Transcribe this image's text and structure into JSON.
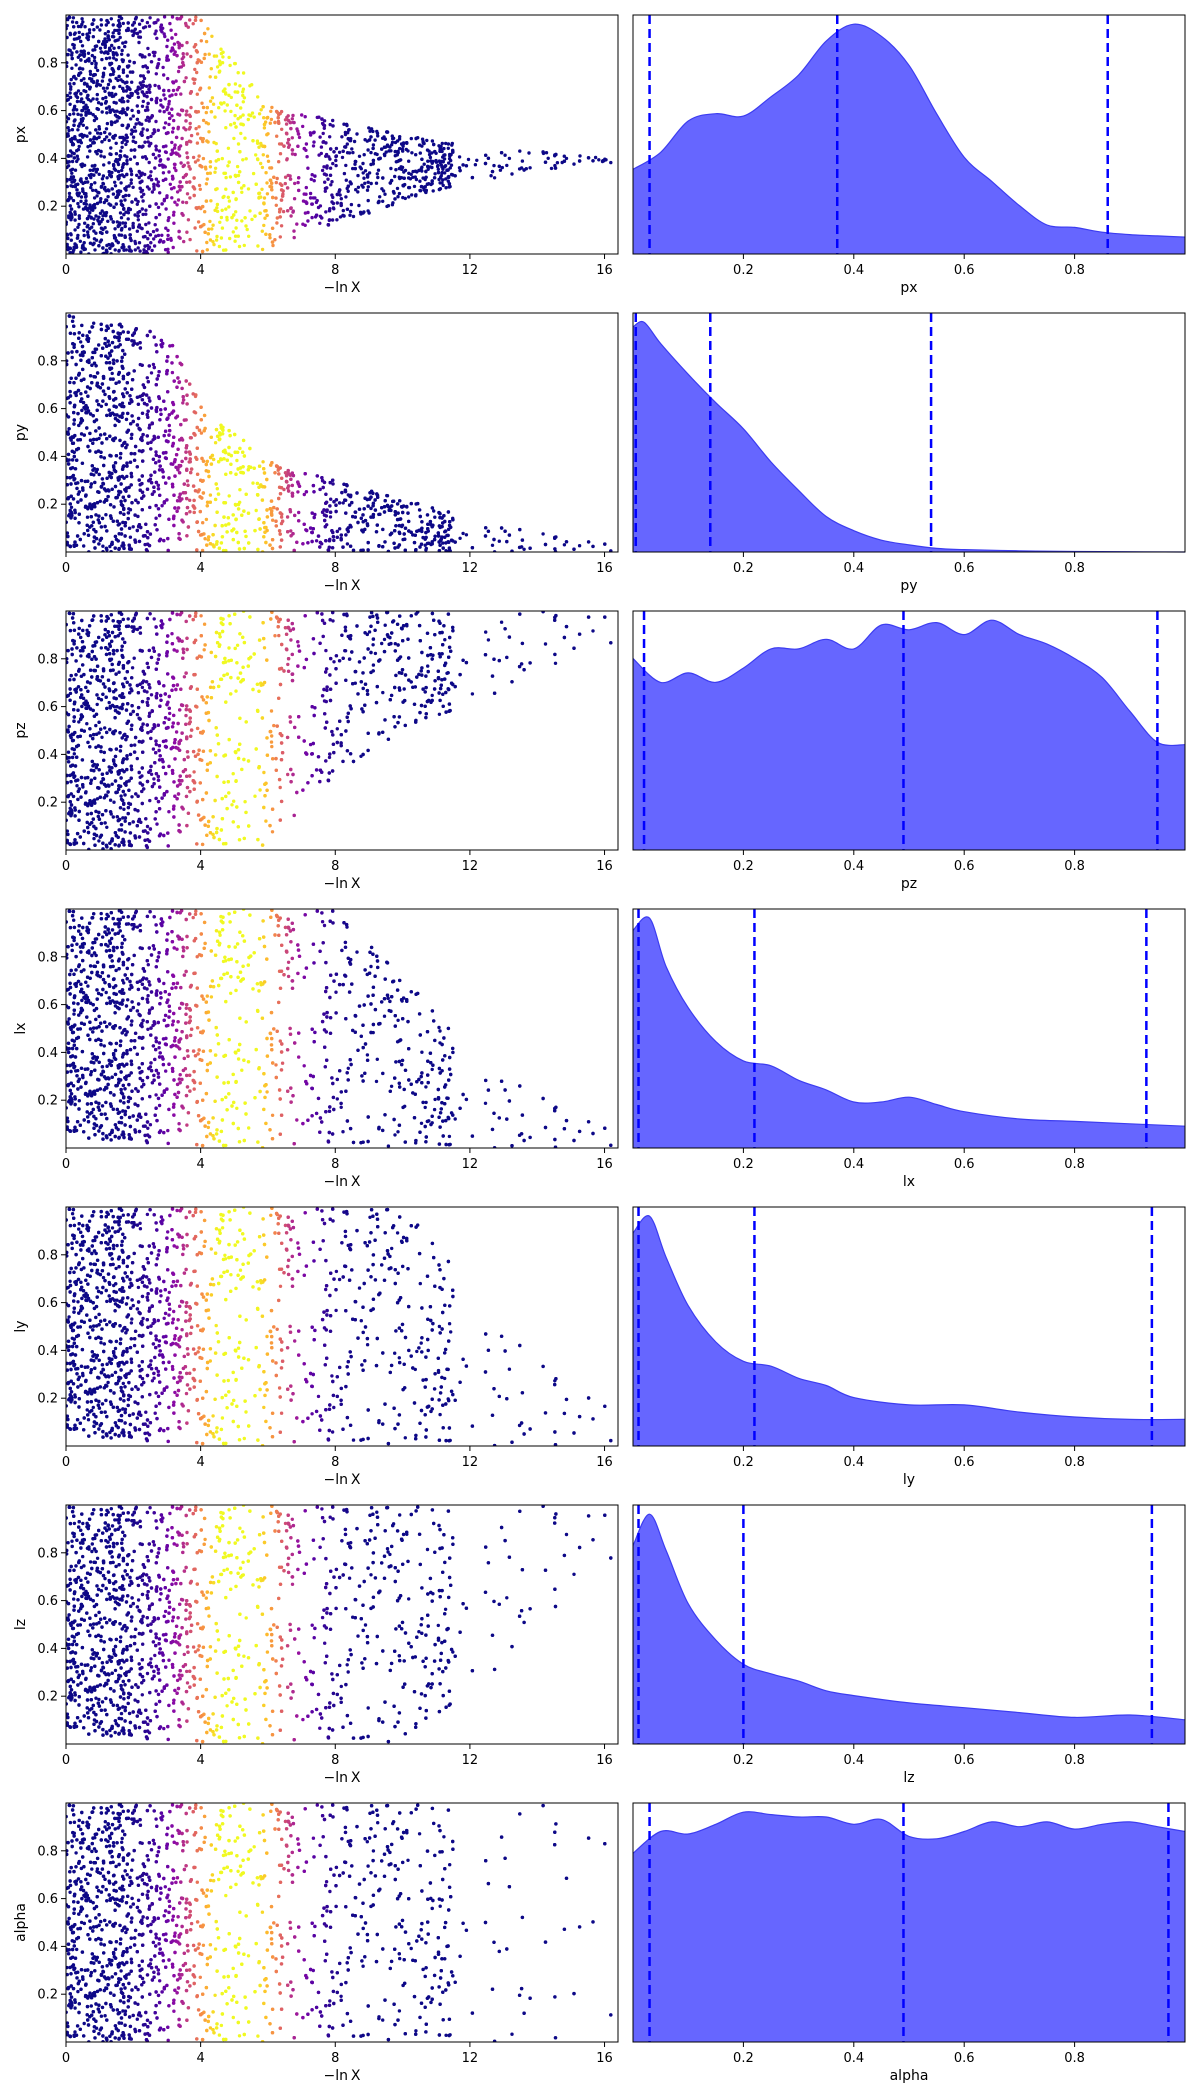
{
  "chart_data": [
    {
      "type": "scatter",
      "xlabel": "−ln X",
      "ylabel": "px",
      "xlim": [
        0,
        16.4
      ],
      "ylim": [
        0,
        1
      ],
      "xticks": [
        0,
        4,
        8,
        12,
        16
      ],
      "xtick_labels": [
        "0",
        "4",
        "8",
        "12",
        "16"
      ],
      "yticks": [
        0.2,
        0.4,
        0.6,
        0.8
      ],
      "ytick_labels": [
        "0.2",
        "0.4",
        "0.6",
        "0.8"
      ],
      "colormap": "plasma",
      "point_color": "#0d0887",
      "envelope": {
        "x": [
          0,
          4,
          6,
          8,
          10,
          12,
          14,
          16
        ],
        "lo": [
          0,
          0,
          0.02,
          0.12,
          0.22,
          0.3,
          0.35,
          0.38
        ],
        "hi": [
          1,
          1,
          0.62,
          0.56,
          0.5,
          0.45,
          0.43,
          0.4
        ]
      }
    },
    {
      "type": "area",
      "xlabel": "px",
      "xlim": [
        0,
        1
      ],
      "xticks": [
        0.2,
        0.4,
        0.6,
        0.8
      ],
      "xtick_labels": [
        "0.2",
        "0.4",
        "0.6",
        "0.8"
      ],
      "x": [
        0,
        0.05,
        0.1,
        0.15,
        0.2,
        0.25,
        0.3,
        0.35,
        0.4,
        0.45,
        0.5,
        0.55,
        0.6,
        0.65,
        0.7,
        0.75,
        0.8,
        0.85,
        0.9,
        0.95,
        1.0
      ],
      "y": [
        0.35,
        0.42,
        0.55,
        0.58,
        0.57,
        0.65,
        0.74,
        0.88,
        0.95,
        0.9,
        0.78,
        0.58,
        0.4,
        0.3,
        0.2,
        0.12,
        0.11,
        0.09,
        0.08,
        0.075,
        0.07
      ],
      "fill_color": "#6666ff",
      "line_color": "#3c3cf0",
      "vlines": [
        0.03,
        0.37,
        0.86
      ],
      "vline_color": "#0000ff"
    },
    {
      "type": "scatter",
      "xlabel": "−ln X",
      "ylabel": "py",
      "xlim": [
        0,
        16.4
      ],
      "ylim": [
        0,
        1
      ],
      "xticks": [
        0,
        4,
        8,
        12,
        16
      ],
      "xtick_labels": [
        "0",
        "4",
        "8",
        "12",
        "16"
      ],
      "yticks": [
        0.2,
        0.4,
        0.6,
        0.8
      ],
      "ytick_labels": [
        "0.2",
        "0.4",
        "0.6",
        "0.8"
      ],
      "colormap": "plasma",
      "point_color": "#0d0887",
      "envelope": {
        "x": [
          0,
          3,
          4,
          6,
          8,
          10,
          12,
          14,
          16
        ],
        "lo": [
          0,
          0,
          0,
          0,
          0,
          0,
          0,
          0,
          0
        ],
        "hi": [
          1,
          0.92,
          0.62,
          0.38,
          0.3,
          0.22,
          0.15,
          0.08,
          0.04
        ]
      }
    },
    {
      "type": "area",
      "xlabel": "py",
      "xlim": [
        0,
        1
      ],
      "xticks": [
        0.2,
        0.4,
        0.6,
        0.8
      ],
      "xtick_labels": [
        "0.2",
        "0.4",
        "0.6",
        "0.8"
      ],
      "x": [
        0,
        0.02,
        0.05,
        0.1,
        0.15,
        0.2,
        0.25,
        0.3,
        0.35,
        0.4,
        0.45,
        0.5,
        0.55,
        0.6,
        0.7,
        0.8,
        1.0
      ],
      "y": [
        0.95,
        0.97,
        0.88,
        0.75,
        0.63,
        0.52,
        0.38,
        0.26,
        0.15,
        0.09,
        0.05,
        0.03,
        0.015,
        0.01,
        0.005,
        0.002,
        0
      ],
      "fill_color": "#6666ff",
      "line_color": "#3c3cf0",
      "vlines": [
        0.005,
        0.14,
        0.54
      ],
      "vline_color": "#0000ff"
    },
    {
      "type": "scatter",
      "xlabel": "−ln X",
      "ylabel": "pz",
      "xlim": [
        0,
        16.4
      ],
      "ylim": [
        0,
        1
      ],
      "xticks": [
        0,
        4,
        8,
        12,
        16
      ],
      "xtick_labels": [
        "0",
        "4",
        "8",
        "12",
        "16"
      ],
      "yticks": [
        0.2,
        0.4,
        0.6,
        0.8
      ],
      "ytick_labels": [
        "0.2",
        "0.4",
        "0.6",
        "0.8"
      ],
      "colormap": "plasma",
      "point_color": "#0d0887",
      "envelope": {
        "x": [
          0,
          6,
          8,
          10,
          12,
          14,
          16
        ],
        "lo": [
          0,
          0.02,
          0.3,
          0.5,
          0.6,
          0.75,
          0.85
        ],
        "hi": [
          1,
          1,
          1,
          1,
          1,
          1,
          1
        ]
      }
    },
    {
      "type": "area",
      "xlabel": "pz",
      "xlim": [
        0,
        1
      ],
      "xticks": [
        0.2,
        0.4,
        0.6,
        0.8
      ],
      "xtick_labels": [
        "0.2",
        "0.4",
        "0.6",
        "0.8"
      ],
      "x": [
        0,
        0.05,
        0.1,
        0.15,
        0.2,
        0.25,
        0.3,
        0.35,
        0.4,
        0.45,
        0.5,
        0.55,
        0.6,
        0.65,
        0.7,
        0.75,
        0.8,
        0.85,
        0.9,
        0.95,
        1.0
      ],
      "y": [
        0.8,
        0.7,
        0.74,
        0.7,
        0.76,
        0.84,
        0.84,
        0.88,
        0.84,
        0.94,
        0.92,
        0.95,
        0.9,
        0.96,
        0.9,
        0.86,
        0.8,
        0.72,
        0.58,
        0.45,
        0.44
      ],
      "fill_color": "#6666ff",
      "line_color": "#3c3cf0",
      "vlines": [
        0.02,
        0.49,
        0.95
      ],
      "vline_color": "#0000ff"
    },
    {
      "type": "scatter",
      "xlabel": "−ln X",
      "ylabel": "lx",
      "xlim": [
        0,
        16.4
      ],
      "ylim": [
        0,
        1
      ],
      "xticks": [
        0,
        4,
        8,
        12,
        16
      ],
      "xtick_labels": [
        "0",
        "4",
        "8",
        "12",
        "16"
      ],
      "yticks": [
        0.2,
        0.4,
        0.6,
        0.8
      ],
      "ytick_labels": [
        "0.2",
        "0.4",
        "0.6",
        "0.8"
      ],
      "colormap": "plasma",
      "point_color": "#0d0887",
      "envelope": {
        "x": [
          0,
          4,
          8,
          10,
          12,
          14,
          16
        ],
        "lo": [
          0.05,
          0,
          0,
          0,
          0,
          0,
          0
        ],
        "hi": [
          1,
          1,
          1,
          0.72,
          0.42,
          0.22,
          0.1
        ]
      }
    },
    {
      "type": "area",
      "xlabel": "lx",
      "xlim": [
        0,
        1
      ],
      "xticks": [
        0.2,
        0.4,
        0.6,
        0.8
      ],
      "xtick_labels": [
        "0.2",
        "0.4",
        "0.6",
        "0.8"
      ],
      "x": [
        0,
        0.03,
        0.06,
        0.1,
        0.15,
        0.2,
        0.25,
        0.3,
        0.35,
        0.4,
        0.45,
        0.5,
        0.55,
        0.6,
        0.7,
        0.8,
        0.9,
        1.0
      ],
      "y": [
        0.9,
        0.95,
        0.75,
        0.58,
        0.44,
        0.36,
        0.34,
        0.28,
        0.24,
        0.19,
        0.19,
        0.21,
        0.18,
        0.15,
        0.12,
        0.11,
        0.1,
        0.09
      ],
      "fill_color": "#6666ff",
      "line_color": "#3c3cf0",
      "vlines": [
        0.01,
        0.22,
        0.93
      ],
      "vline_color": "#0000ff"
    },
    {
      "type": "scatter",
      "xlabel": "−ln X",
      "ylabel": "ly",
      "xlim": [
        0,
        16.4
      ],
      "ylim": [
        0,
        1
      ],
      "xticks": [
        0,
        4,
        8,
        12,
        16
      ],
      "xtick_labels": [
        "0",
        "4",
        "8",
        "12",
        "16"
      ],
      "yticks": [
        0.2,
        0.4,
        0.6,
        0.8
      ],
      "ytick_labels": [
        "0.2",
        "0.4",
        "0.6",
        "0.8"
      ],
      "colormap": "plasma",
      "point_color": "#0d0887",
      "envelope": {
        "x": [
          0,
          4,
          8,
          10,
          12,
          14,
          16
        ],
        "lo": [
          0.05,
          0,
          0,
          0,
          0,
          0,
          0
        ],
        "hi": [
          1,
          1,
          1,
          1,
          0.7,
          0.35,
          0.2
        ]
      }
    },
    {
      "type": "area",
      "xlabel": "ly",
      "xlim": [
        0,
        1
      ],
      "xticks": [
        0.2,
        0.4,
        0.6,
        0.8
      ],
      "xtick_labels": [
        "0.2",
        "0.4",
        "0.6",
        "0.8"
      ],
      "x": [
        0,
        0.03,
        0.06,
        0.1,
        0.15,
        0.2,
        0.25,
        0.3,
        0.35,
        0.4,
        0.5,
        0.6,
        0.7,
        0.8,
        0.9,
        1.0
      ],
      "y": [
        0.88,
        0.95,
        0.78,
        0.58,
        0.43,
        0.35,
        0.33,
        0.28,
        0.25,
        0.2,
        0.17,
        0.17,
        0.14,
        0.12,
        0.11,
        0.11
      ],
      "fill_color": "#6666ff",
      "line_color": "#3c3cf0",
      "vlines": [
        0.01,
        0.22,
        0.94
      ],
      "vline_color": "#0000ff"
    },
    {
      "type": "scatter",
      "xlabel": "−ln X",
      "ylabel": "lz",
      "xlim": [
        0,
        16.4
      ],
      "ylim": [
        0,
        1
      ],
      "xticks": [
        0,
        4,
        8,
        12,
        16
      ],
      "xtick_labels": [
        "0",
        "4",
        "8",
        "12",
        "16"
      ],
      "yticks": [
        0.2,
        0.4,
        0.6,
        0.8
      ],
      "ytick_labels": [
        "0.2",
        "0.4",
        "0.6",
        "0.8"
      ],
      "colormap": "plasma",
      "point_color": "#0d0887",
      "envelope": {
        "x": [
          0,
          4,
          8,
          10,
          12,
          14,
          16
        ],
        "lo": [
          0.05,
          0,
          0,
          0,
          0.2,
          0.5,
          0.75
        ],
        "hi": [
          1,
          1,
          1,
          1,
          1,
          1,
          1
        ]
      }
    },
    {
      "type": "area",
      "xlabel": "lz",
      "xlim": [
        0,
        1
      ],
      "xticks": [
        0.2,
        0.4,
        0.6,
        0.8
      ],
      "xtick_labels": [
        "0.2",
        "0.4",
        "0.6",
        "0.8"
      ],
      "x": [
        0,
        0.03,
        0.06,
        0.1,
        0.15,
        0.2,
        0.25,
        0.3,
        0.35,
        0.4,
        0.5,
        0.6,
        0.7,
        0.8,
        0.9,
        1.0
      ],
      "y": [
        0.82,
        0.95,
        0.8,
        0.58,
        0.43,
        0.33,
        0.29,
        0.26,
        0.22,
        0.2,
        0.17,
        0.15,
        0.13,
        0.11,
        0.12,
        0.1
      ],
      "fill_color": "#6666ff",
      "line_color": "#3c3cf0",
      "vlines": [
        0.01,
        0.2,
        0.94
      ],
      "vline_color": "#0000ff"
    },
    {
      "type": "scatter",
      "xlabel": "−ln X",
      "ylabel": "alpha",
      "xlim": [
        0,
        16.4
      ],
      "ylim": [
        0,
        1
      ],
      "xticks": [
        0,
        4,
        8,
        12,
        16
      ],
      "xtick_labels": [
        "0",
        "4",
        "8",
        "12",
        "16"
      ],
      "yticks": [
        0.2,
        0.4,
        0.6,
        0.8
      ],
      "ytick_labels": [
        "0.2",
        "0.4",
        "0.6",
        "0.8"
      ],
      "colormap": "plasma",
      "point_color": "#0d0887",
      "envelope": {
        "x": [
          0,
          4,
          8,
          10,
          12,
          14,
          16
        ],
        "lo": [
          0,
          0,
          0,
          0,
          0,
          0,
          0
        ],
        "hi": [
          1,
          1,
          1,
          1,
          1,
          1,
          1
        ]
      }
    },
    {
      "type": "area",
      "xlabel": "alpha",
      "xlim": [
        0,
        1
      ],
      "xticks": [
        0.2,
        0.4,
        0.6,
        0.8
      ],
      "xtick_labels": [
        "0.2",
        "0.4",
        "0.6",
        "0.8"
      ],
      "x": [
        0,
        0.05,
        0.1,
        0.15,
        0.2,
        0.25,
        0.3,
        0.35,
        0.4,
        0.45,
        0.5,
        0.55,
        0.6,
        0.65,
        0.7,
        0.75,
        0.8,
        0.85,
        0.9,
        0.95,
        1.0
      ],
      "y": [
        0.78,
        0.87,
        0.86,
        0.9,
        0.95,
        0.94,
        0.93,
        0.93,
        0.9,
        0.92,
        0.85,
        0.84,
        0.87,
        0.91,
        0.89,
        0.91,
        0.88,
        0.9,
        0.91,
        0.89,
        0.87
      ],
      "fill_color": "#6666ff",
      "line_color": "#3c3cf0",
      "vlines": [
        0.03,
        0.49,
        0.97
      ],
      "vline_color": "#0000ff"
    }
  ]
}
